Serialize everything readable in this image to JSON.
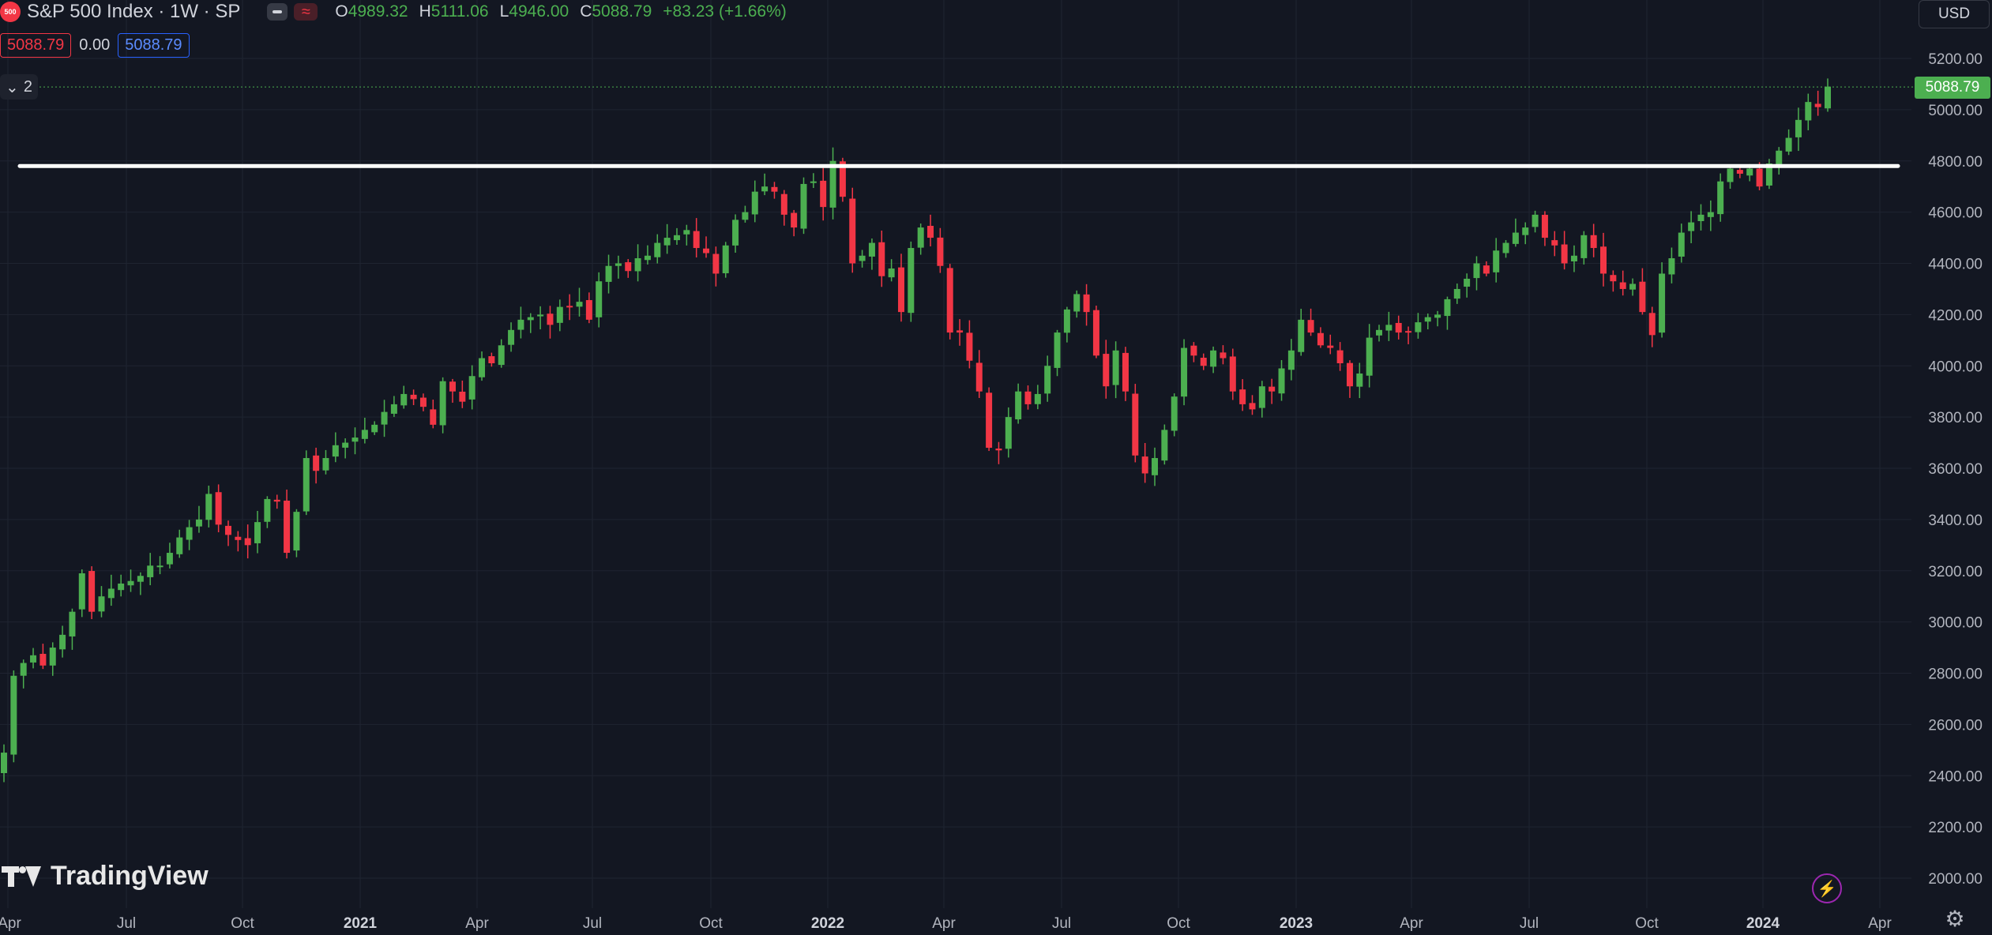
{
  "legend": {
    "logo_text": "500",
    "symbol": "S&P 500 Index · 1W · SP",
    "ohlc": {
      "o_label": "O",
      "o_value": "4989.32",
      "h_label": "H",
      "h_value": "5111.06",
      "l_label": "L",
      "l_value": "4946.00",
      "c_label": "C",
      "c_value": "5088.79",
      "change": "+83.23 (+1.66%)"
    },
    "sell_price": "5088.79",
    "spread": "0.00",
    "buy_price": "5088.79",
    "indicator_count": "2"
  },
  "currency": "USD",
  "last_price_label": "5088.79",
  "watermark": "TradingView",
  "colors": {
    "background": "#131722",
    "up": "#4caf50",
    "down": "#f23645",
    "grid": "#1f2431",
    "horizontal_line": "#ffffff"
  },
  "chart_data": {
    "type": "candlestick",
    "interval": "1W",
    "ylim": [
      1850,
      5300
    ],
    "y_ticks": [
      "5200.00",
      "5000.00",
      "4800.00",
      "4600.00",
      "4400.00",
      "4200.00",
      "4000.00",
      "3800.00",
      "3600.00",
      "3400.00",
      "3200.00",
      "3000.00",
      "2800.00",
      "2600.00",
      "2400.00",
      "2200.00",
      "2000.00"
    ],
    "x_ticks": [
      "Apr",
      "Jul",
      "Oct",
      "2021",
      "Apr",
      "Jul",
      "Oct",
      "2022",
      "Apr",
      "Jul",
      "Oct",
      "2023",
      "Apr",
      "Jul",
      "Oct",
      "2024",
      "Apr"
    ],
    "x_tick_years": [
      "2020-04",
      "2020-07",
      "2020-10",
      "2021-01",
      "2021-04",
      "2021-07",
      "2021-10",
      "2022-01",
      "2022-04",
      "2022-07",
      "2022-10",
      "2023-01",
      "2023-04",
      "2023-07",
      "2023-10",
      "2024-01",
      "2024-04"
    ],
    "x_range": [
      "2020-04",
      "2024-04"
    ],
    "horizontal_line": {
      "price": 4780
    },
    "last_close": 5088.79,
    "weekly_closes": [
      2490,
      2790,
      2840,
      2870,
      2830,
      2900,
      2950,
      3040,
      3190,
      3040,
      3100,
      3130,
      3150,
      3160,
      3180,
      3220,
      3220,
      3270,
      3330,
      3370,
      3400,
      3500,
      3380,
      3340,
      3320,
      3300,
      3390,
      3480,
      3470,
      3270,
      3430,
      3640,
      3590,
      3640,
      3690,
      3700,
      3720,
      3750,
      3770,
      3820,
      3850,
      3890,
      3870,
      3840,
      3770,
      3940,
      3900,
      3860,
      3960,
      4030,
      4010,
      4080,
      4140,
      4180,
      4190,
      4200,
      4160,
      4230,
      4230,
      4250,
      4180,
      4330,
      4390,
      4400,
      4370,
      4420,
      4430,
      4480,
      4500,
      4510,
      4530,
      4460,
      4440,
      4360,
      4470,
      4570,
      4600,
      4680,
      4700,
      4680,
      4590,
      4540,
      4710,
      4720,
      4620,
      4800,
      4660,
      4400,
      4430,
      4480,
      4350,
      4380,
      4210,
      4460,
      4540,
      4500,
      4390,
      4130,
      4130,
      4020,
      3900,
      3680,
      3670,
      3800,
      3900,
      3850,
      3890,
      4000,
      4130,
      4220,
      4280,
      4210,
      4040,
      3920,
      4060,
      3900,
      3650,
      3580,
      3640,
      3750,
      3880,
      4070,
      4040,
      4000,
      4060,
      4030,
      3900,
      3850,
      3830,
      3920,
      3900,
      3990,
      4060,
      4180,
      4130,
      4080,
      4070,
      4010,
      3920,
      3970,
      4110,
      4140,
      4160,
      4130,
      4130,
      4170,
      4190,
      4200,
      4260,
      4300,
      4340,
      4400,
      4360,
      4450,
      4480,
      4520,
      4540,
      4590,
      4500,
      4470,
      4400,
      4430,
      4510,
      4460,
      4360,
      4330,
      4300,
      4320,
      4210,
      4120,
      4360,
      4420,
      4520,
      4560,
      4590,
      4600,
      4720,
      4770,
      4750,
      4770,
      4700,
      4790,
      4840,
      4890,
      4960,
      5030,
      5010,
      5090
    ]
  }
}
